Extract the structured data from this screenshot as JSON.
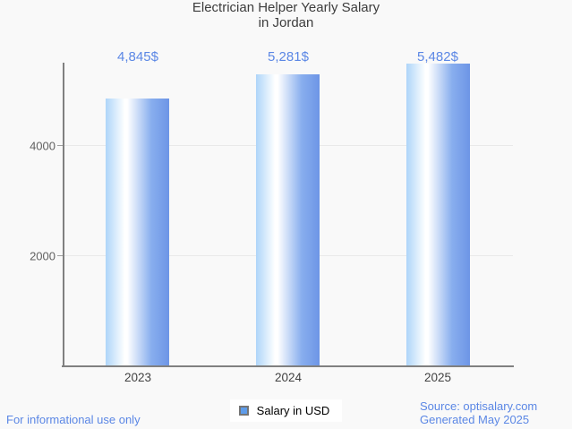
{
  "header": {
    "title_line1": "Electrician Helper Yearly Salary",
    "title_line2": "in Jordan"
  },
  "chart_data": {
    "type": "bar",
    "title": "Electrician Helper Yearly Salary in Jordan",
    "categories": [
      "2023",
      "2024",
      "2025"
    ],
    "series": [
      {
        "name": "Salary in USD",
        "values": [
          4845,
          5281,
          5482
        ]
      }
    ],
    "value_labels": [
      "4,845$",
      "5,281$",
      "5,482$"
    ],
    "xlabel": "",
    "ylabel": "",
    "ylim": [
      0,
      5500
    ],
    "yticks": [
      2000,
      4000
    ],
    "ytick_labels": [
      "2000",
      "4000"
    ],
    "grid": "horizontal",
    "legend_position": "bottom-center",
    "colors": {
      "bar_gradient_left": "#aed5f9",
      "bar_gradient_mid": "#ffffff",
      "bar_gradient_right": "#6d95e6",
      "value_label": "#5b87e5",
      "axis": "#808080",
      "gridline": "#e9e9e9",
      "tick_text": "#616161",
      "title_text": "#3d3d3d",
      "background": "#f9f9f9",
      "legend_swatch": "#5e9cea"
    }
  },
  "legend": {
    "label": "Salary in USD"
  },
  "footer": {
    "left_note": "For informational use only",
    "source": "Source: optisalary.com",
    "generated": "Generated May 2025"
  }
}
